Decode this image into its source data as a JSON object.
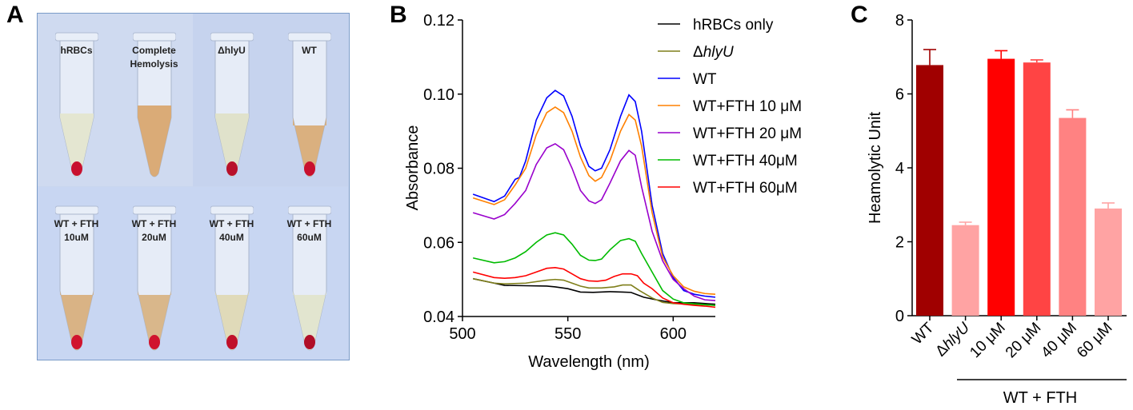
{
  "panels": {
    "a": "A",
    "b": "B",
    "c": "C"
  },
  "photo": {
    "tubes": [
      {
        "label": "hRBCs",
        "liquid": "#e4e6cf",
        "pellet": "#c8102e"
      },
      {
        "label": "Complete\nHemolysis",
        "liquid": "#d9a870",
        "pellet": null
      },
      {
        "label": "ΔhlyU",
        "liquid": "#dfe2c8",
        "pellet": "#b8102a"
      },
      {
        "label": "WT",
        "liquid": "#d9ad78",
        "pellet": "#c8102e"
      },
      {
        "label": "WT + FTH\n10uM",
        "liquid": "#d8b07e",
        "pellet": "#d0142e"
      },
      {
        "label": "WT + FTH\n20uM",
        "liquid": "#d8b485",
        "pellet": "#d0142e"
      },
      {
        "label": "WT + FTH\n40uM",
        "liquid": "#dfd9b5",
        "pellet": "#c0102a"
      },
      {
        "label": "WT + FTH\n60uM",
        "liquid": "#e2e5cc",
        "pellet": "#b00e28"
      }
    ]
  },
  "chart_data": [
    {
      "type": "line",
      "xlabel": "Wavelength (nm)",
      "ylabel": "Absorbance",
      "xlim": [
        500,
        620
      ],
      "ylim": [
        0.04,
        0.12
      ],
      "xticks": [
        "500",
        "550",
        "600"
      ],
      "yticks": [
        "0.04",
        "0.06",
        "0.08",
        "0.10",
        "0.12"
      ],
      "legend_position": "top-right",
      "series": [
        {
          "name": "hRBCs only",
          "color": "#000000",
          "italic_part": "",
          "points": [
            [
              505,
              0.0502
            ],
            [
              515,
              0.049
            ],
            [
              520,
              0.0484
            ],
            [
              530,
              0.0483
            ],
            [
              540,
              0.0482
            ],
            [
              544,
              0.048
            ],
            [
              550,
              0.0475
            ],
            [
              556,
              0.0466
            ],
            [
              562,
              0.0465
            ],
            [
              570,
              0.0467
            ],
            [
              576,
              0.0466
            ],
            [
              580,
              0.0465
            ],
            [
              586,
              0.0452
            ],
            [
              592,
              0.0445
            ],
            [
              600,
              0.0437
            ],
            [
              610,
              0.0437
            ],
            [
              620,
              0.0433
            ]
          ]
        },
        {
          "name": "ΔhlyU",
          "color": "#7f7f1a",
          "italic_part": "hlyU",
          "points": [
            [
              505,
              0.0502
            ],
            [
              515,
              0.049
            ],
            [
              520,
              0.0488
            ],
            [
              530,
              0.049
            ],
            [
              540,
              0.0498
            ],
            [
              544,
              0.05
            ],
            [
              548,
              0.0498
            ],
            [
              552,
              0.049
            ],
            [
              556,
              0.0482
            ],
            [
              560,
              0.0477
            ],
            [
              566,
              0.0477
            ],
            [
              572,
              0.048
            ],
            [
              576,
              0.0485
            ],
            [
              580,
              0.0485
            ],
            [
              584,
              0.047
            ],
            [
              590,
              0.045
            ],
            [
              595,
              0.0438
            ],
            [
              600,
              0.0435
            ],
            [
              610,
              0.0433
            ],
            [
              620,
              0.043
            ]
          ]
        },
        {
          "name": "WT",
          "color": "#0000ff",
          "italic_part": "",
          "points": [
            [
              505,
              0.073
            ],
            [
              515,
              0.071
            ],
            [
              520,
              0.0725
            ],
            [
              525,
              0.077
            ],
            [
              527,
              0.0775
            ],
            [
              530,
              0.082
            ],
            [
              535,
              0.093
            ],
            [
              540,
              0.099
            ],
            [
              544,
              0.101
            ],
            [
              548,
              0.0995
            ],
            [
              552,
              0.094
            ],
            [
              556,
              0.086
            ],
            [
              560,
              0.0805
            ],
            [
              563,
              0.0793
            ],
            [
              566,
              0.08
            ],
            [
              570,
              0.085
            ],
            [
              575,
              0.094
            ],
            [
              579,
              0.0998
            ],
            [
              582,
              0.098
            ],
            [
              585,
              0.09
            ],
            [
              590,
              0.07
            ],
            [
              595,
              0.057
            ],
            [
              600,
              0.0505
            ],
            [
              605,
              0.047
            ],
            [
              610,
              0.046
            ],
            [
              615,
              0.0455
            ],
            [
              620,
              0.0452
            ]
          ]
        },
        {
          "name": "WT+FTH 10 μM",
          "color": "#ff8000",
          "italic_part": "",
          "points": [
            [
              505,
              0.072
            ],
            [
              515,
              0.0702
            ],
            [
              520,
              0.0715
            ],
            [
              525,
              0.0755
            ],
            [
              530,
              0.08
            ],
            [
              535,
              0.089
            ],
            [
              540,
              0.095
            ],
            [
              544,
              0.0965
            ],
            [
              548,
              0.095
            ],
            [
              552,
              0.09
            ],
            [
              556,
              0.083
            ],
            [
              560,
              0.078
            ],
            [
              563,
              0.0765
            ],
            [
              566,
              0.0775
            ],
            [
              570,
              0.082
            ],
            [
              575,
              0.09
            ],
            [
              579,
              0.0945
            ],
            [
              582,
              0.093
            ],
            [
              585,
              0.086
            ],
            [
              590,
              0.068
            ],
            [
              595,
              0.056
            ],
            [
              600,
              0.051
            ],
            [
              605,
              0.048
            ],
            [
              610,
              0.0468
            ],
            [
              615,
              0.0462
            ],
            [
              620,
              0.046
            ]
          ]
        },
        {
          "name": "WT+FTH 20 μM",
          "color": "#9900cc",
          "italic_part": "",
          "points": [
            [
              505,
              0.068
            ],
            [
              515,
              0.0663
            ],
            [
              520,
              0.0675
            ],
            [
              525,
              0.0705
            ],
            [
              530,
              0.074
            ],
            [
              535,
              0.081
            ],
            [
              540,
              0.0855
            ],
            [
              544,
              0.0866
            ],
            [
              548,
              0.085
            ],
            [
              552,
              0.08
            ],
            [
              556,
              0.074
            ],
            [
              560,
              0.0712
            ],
            [
              563,
              0.0705
            ],
            [
              566,
              0.0715
            ],
            [
              570,
              0.076
            ],
            [
              575,
              0.082
            ],
            [
              579,
              0.0848
            ],
            [
              582,
              0.0835
            ],
            [
              585,
              0.075
            ],
            [
              590,
              0.063
            ],
            [
              595,
              0.055
            ],
            [
              600,
              0.05
            ],
            [
              605,
              0.0475
            ],
            [
              610,
              0.0455
            ],
            [
              615,
              0.0445
            ],
            [
              620,
              0.0443
            ]
          ]
        },
        {
          "name": "WT+FTH 40μM",
          "color": "#00bb00",
          "italic_part": "",
          "points": [
            [
              505,
              0.0558
            ],
            [
              515,
              0.0545
            ],
            [
              520,
              0.0548
            ],
            [
              525,
              0.0558
            ],
            [
              530,
              0.0575
            ],
            [
              535,
              0.06
            ],
            [
              540,
              0.062
            ],
            [
              544,
              0.0626
            ],
            [
              548,
              0.062
            ],
            [
              552,
              0.0595
            ],
            [
              556,
              0.0565
            ],
            [
              560,
              0.0552
            ],
            [
              563,
              0.0551
            ],
            [
              566,
              0.0555
            ],
            [
              570,
              0.058
            ],
            [
              575,
              0.0605
            ],
            [
              579,
              0.061
            ],
            [
              582,
              0.0603
            ],
            [
              585,
              0.057
            ],
            [
              590,
              0.052
            ],
            [
              595,
              0.047
            ],
            [
              600,
              0.0447
            ],
            [
              605,
              0.0437
            ],
            [
              610,
              0.0434
            ],
            [
              615,
              0.0432
            ],
            [
              620,
              0.043
            ]
          ]
        },
        {
          "name": "WT+FTH 60μM",
          "color": "#ff0000",
          "italic_part": "",
          "points": [
            [
              505,
              0.052
            ],
            [
              515,
              0.0505
            ],
            [
              520,
              0.0503
            ],
            [
              525,
              0.0505
            ],
            [
              530,
              0.051
            ],
            [
              535,
              0.052
            ],
            [
              540,
              0.053
            ],
            [
              544,
              0.0532
            ],
            [
              548,
              0.0528
            ],
            [
              552,
              0.0515
            ],
            [
              556,
              0.0502
            ],
            [
              560,
              0.0496
            ],
            [
              564,
              0.0495
            ],
            [
              568,
              0.0498
            ],
            [
              572,
              0.0508
            ],
            [
              576,
              0.0515
            ],
            [
              580,
              0.0515
            ],
            [
              583,
              0.051
            ],
            [
              586,
              0.049
            ],
            [
              590,
              0.0475
            ],
            [
              595,
              0.045
            ],
            [
              600,
              0.0437
            ],
            [
              605,
              0.0433
            ],
            [
              610,
              0.043
            ],
            [
              615,
              0.0428
            ],
            [
              620,
              0.0425
            ]
          ]
        }
      ]
    },
    {
      "type": "bar",
      "ylabel": "Heamolytic Unit",
      "ylim": [
        0,
        8
      ],
      "yticks": [
        "0",
        "2",
        "4",
        "6",
        "8"
      ],
      "categories": [
        "WT",
        "ΔhlyU",
        "10 μM",
        "20 μM",
        "40 μM",
        "60 μM"
      ],
      "values": [
        6.78,
        2.45,
        6.95,
        6.85,
        5.35,
        2.9
      ],
      "errors": [
        0.42,
        0.08,
        0.22,
        0.07,
        0.22,
        0.15
      ],
      "colors": [
        "#a00000",
        "#ffa3a3",
        "#ff0000",
        "#ff4444",
        "#ff8282",
        "#ffa3a3"
      ],
      "group_label": "WT + FTH"
    }
  ]
}
